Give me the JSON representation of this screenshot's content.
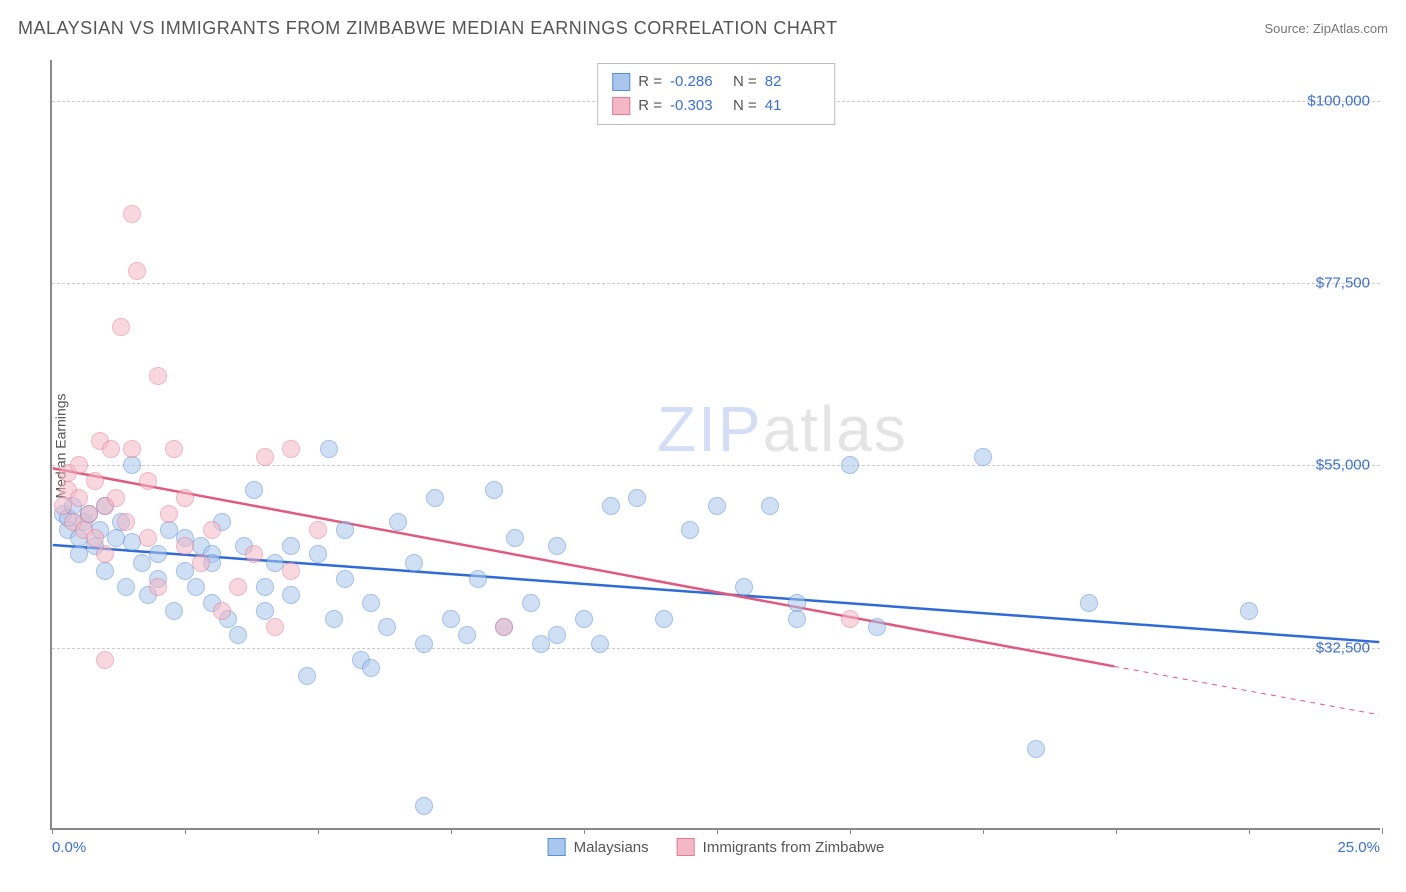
{
  "header": {
    "title": "MALAYSIAN VS IMMIGRANTS FROM ZIMBABWE MEDIAN EARNINGS CORRELATION CHART",
    "source_prefix": "Source: ",
    "source_name": "ZipAtlas.com"
  },
  "watermark": {
    "part1": "ZIP",
    "part2": "atlas"
  },
  "chart": {
    "type": "scatter",
    "ylabel": "Median Earnings",
    "xlim": [
      0,
      25
    ],
    "ylim": [
      10000,
      105000
    ],
    "x_axis": {
      "min_label": "0.0%",
      "max_label": "25.0%",
      "tick_positions_pct": [
        0,
        10,
        20,
        30,
        40,
        50,
        60,
        70,
        80,
        90,
        100
      ]
    },
    "y_gridlines": [
      {
        "value": 32500,
        "label": "$32,500"
      },
      {
        "value": 55000,
        "label": "$55,000"
      },
      {
        "value": 77500,
        "label": "$77,500"
      },
      {
        "value": 100000,
        "label": "$100,000"
      }
    ],
    "grid_color": "#cccccc",
    "background_color": "#ffffff",
    "axis_color": "#888888",
    "tick_label_color": "#3b6fd8",
    "point_radius": 9,
    "series": [
      {
        "name": "Malaysians",
        "fill_color": "#a9c6ec",
        "stroke_color": "#5a8fd6",
        "fill_opacity": 0.55,
        "trend": {
          "x1": 0,
          "y1": 45000,
          "x2": 25,
          "y2": 33000,
          "color": "#2e6bd6",
          "width": 2.5
        },
        "stats": {
          "R": "-0.286",
          "N": "82"
        },
        "points": [
          [
            0.2,
            49000
          ],
          [
            0.3,
            47000
          ],
          [
            0.3,
            48500
          ],
          [
            0.4,
            50000
          ],
          [
            0.5,
            46000
          ],
          [
            0.5,
            44000
          ],
          [
            0.6,
            48000
          ],
          [
            0.7,
            49000
          ],
          [
            0.8,
            45000
          ],
          [
            0.9,
            47000
          ],
          [
            1.0,
            50000
          ],
          [
            1.0,
            42000
          ],
          [
            1.2,
            46000
          ],
          [
            1.3,
            48000
          ],
          [
            1.4,
            40000
          ],
          [
            1.5,
            45500
          ],
          [
            1.5,
            55000
          ],
          [
            1.7,
            43000
          ],
          [
            1.8,
            39000
          ],
          [
            2.0,
            44000
          ],
          [
            2.0,
            41000
          ],
          [
            2.2,
            47000
          ],
          [
            2.3,
            37000
          ],
          [
            2.5,
            46000
          ],
          [
            2.5,
            42000
          ],
          [
            2.7,
            40000
          ],
          [
            2.8,
            45000
          ],
          [
            3.0,
            38000
          ],
          [
            3.0,
            44000
          ],
          [
            3.2,
            48000
          ],
          [
            3.3,
            36000
          ],
          [
            3.5,
            34000
          ],
          [
            3.6,
            45000
          ],
          [
            3.8,
            52000
          ],
          [
            4.0,
            40000
          ],
          [
            4.0,
            37000
          ],
          [
            4.2,
            43000
          ],
          [
            4.5,
            45000
          ],
          [
            4.8,
            29000
          ],
          [
            5.0,
            44000
          ],
          [
            5.2,
            57000
          ],
          [
            5.3,
            36000
          ],
          [
            5.5,
            41000
          ],
          [
            5.5,
            47000
          ],
          [
            5.8,
            31000
          ],
          [
            6.0,
            38000
          ],
          [
            6.3,
            35000
          ],
          [
            6.5,
            48000
          ],
          [
            6.8,
            43000
          ],
          [
            7.0,
            33000
          ],
          [
            7.0,
            13000
          ],
          [
            7.2,
            51000
          ],
          [
            7.5,
            36000
          ],
          [
            7.8,
            34000
          ],
          [
            8.0,
            41000
          ],
          [
            8.3,
            52000
          ],
          [
            8.5,
            35000
          ],
          [
            8.7,
            46000
          ],
          [
            9.0,
            38000
          ],
          [
            9.2,
            33000
          ],
          [
            9.5,
            34000
          ],
          [
            9.5,
            45000
          ],
          [
            10.0,
            36000
          ],
          [
            10.3,
            33000
          ],
          [
            10.5,
            50000
          ],
          [
            11.0,
            51000
          ],
          [
            11.5,
            36000
          ],
          [
            12.0,
            47000
          ],
          [
            12.5,
            50000
          ],
          [
            13.0,
            40000
          ],
          [
            13.5,
            50000
          ],
          [
            14.0,
            38000
          ],
          [
            14.0,
            36000
          ],
          [
            15.0,
            55000
          ],
          [
            15.5,
            35000
          ],
          [
            17.5,
            56000
          ],
          [
            18.5,
            20000
          ],
          [
            19.5,
            38000
          ],
          [
            22.5,
            37000
          ],
          [
            3.0,
            43000
          ],
          [
            4.5,
            39000
          ],
          [
            6.0,
            30000
          ]
        ]
      },
      {
        "name": "Immigrants from Zimbabwe",
        "fill_color": "#f3b8c6",
        "stroke_color": "#e47a96",
        "fill_opacity": 0.55,
        "trend": {
          "x1": 0,
          "y1": 54500,
          "x2": 20,
          "y2": 30000,
          "color": "#e05a80",
          "width": 2.5,
          "dash_extend": {
            "x2": 25,
            "y2": 24000
          }
        },
        "stats": {
          "R": "-0.303",
          "N": "41"
        },
        "points": [
          [
            0.2,
            50000
          ],
          [
            0.3,
            52000
          ],
          [
            0.3,
            54000
          ],
          [
            0.4,
            48000
          ],
          [
            0.5,
            51000
          ],
          [
            0.5,
            55000
          ],
          [
            0.6,
            47000
          ],
          [
            0.7,
            49000
          ],
          [
            0.8,
            53000
          ],
          [
            0.8,
            46000
          ],
          [
            0.9,
            58000
          ],
          [
            1.0,
            50000
          ],
          [
            1.0,
            44000
          ],
          [
            1.1,
            57000
          ],
          [
            1.2,
            51000
          ],
          [
            1.3,
            72000
          ],
          [
            1.4,
            48000
          ],
          [
            1.5,
            86000
          ],
          [
            1.5,
            57000
          ],
          [
            1.6,
            79000
          ],
          [
            1.8,
            46000
          ],
          [
            1.8,
            53000
          ],
          [
            2.0,
            66000
          ],
          [
            2.0,
            40000
          ],
          [
            2.2,
            49000
          ],
          [
            2.3,
            57000
          ],
          [
            2.5,
            45000
          ],
          [
            2.5,
            51000
          ],
          [
            2.8,
            43000
          ],
          [
            3.0,
            47000
          ],
          [
            3.2,
            37000
          ],
          [
            3.5,
            40000
          ],
          [
            3.8,
            44000
          ],
          [
            4.0,
            56000
          ],
          [
            4.2,
            35000
          ],
          [
            4.5,
            42000
          ],
          [
            4.5,
            57000
          ],
          [
            5.0,
            47000
          ],
          [
            8.5,
            35000
          ],
          [
            15.0,
            36000
          ],
          [
            1.0,
            31000
          ]
        ]
      }
    ],
    "stats_box": {
      "R_label": "R =",
      "N_label": "N ="
    },
    "bottom_legend": [
      {
        "label": "Malaysians",
        "fill": "#a9c6ec",
        "stroke": "#5a8fd6"
      },
      {
        "label": "Immigrants from Zimbabwe",
        "fill": "#f3b8c6",
        "stroke": "#e47a96"
      }
    ]
  }
}
